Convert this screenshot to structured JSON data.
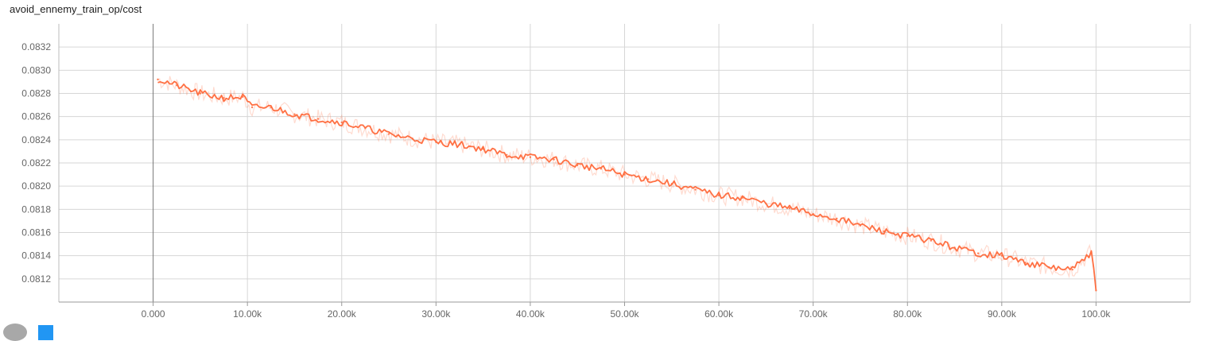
{
  "chart_title": "avoid_ennemy_train_op/cost",
  "chart_data": {
    "type": "line",
    "title": "avoid_ennemy_train_op/cost",
    "xlabel": "",
    "ylabel": "",
    "xlim": [
      -10000,
      110000
    ],
    "ylim": [
      0.081,
      0.0834
    ],
    "x_ticks": [
      0,
      10000,
      20000,
      30000,
      40000,
      50000,
      60000,
      70000,
      80000,
      90000,
      100000
    ],
    "x_tick_labels": [
      "0.000",
      "10.00k",
      "20.00k",
      "30.00k",
      "40.00k",
      "50.00k",
      "60.00k",
      "70.00k",
      "80.00k",
      "90.00k",
      "100.0k"
    ],
    "y_ticks": [
      0.0812,
      0.0814,
      0.0816,
      0.0818,
      0.082,
      0.0822,
      0.0824,
      0.0826,
      0.0828,
      0.083,
      0.0832
    ],
    "y_tick_labels": [
      "0.0812",
      "0.0814",
      "0.0816",
      "0.0818",
      "0.0820",
      "0.0822",
      "0.0824",
      "0.0826",
      "0.0828",
      "0.0830",
      "0.0832"
    ],
    "grid": true,
    "series": [
      {
        "color": "#ff7043",
        "x": [
          500,
          2500,
          5000,
          7500,
          9500,
          10500,
          12500,
          15000,
          17500,
          20000,
          22500,
          25000,
          27500,
          30000,
          32500,
          35000,
          37500,
          40000,
          42500,
          45000,
          47500,
          50000,
          52500,
          55000,
          57500,
          60000,
          62500,
          65000,
          67500,
          70000,
          72500,
          75000,
          77500,
          80000,
          82500,
          85000,
          87500,
          90000,
          92500,
          95000,
          97500,
          99500,
          100000
        ],
        "y": [
          0.08292,
          0.08287,
          0.0828,
          0.08276,
          0.08277,
          0.08268,
          0.08268,
          0.08262,
          0.08258,
          0.08255,
          0.0825,
          0.08245,
          0.08241,
          0.08238,
          0.08236,
          0.08232,
          0.08227,
          0.08225,
          0.08223,
          0.08218,
          0.08215,
          0.0821,
          0.08206,
          0.08202,
          0.08197,
          0.08192,
          0.0819,
          0.08185,
          0.08181,
          0.08176,
          0.08172,
          0.08166,
          0.08161,
          0.08157,
          0.08153,
          0.08147,
          0.08142,
          0.0814,
          0.08134,
          0.0813,
          0.08128,
          0.08143,
          0.0811
        ]
      }
    ]
  },
  "icons": {
    "footer": [
      "toggle-icon",
      "expand-icon"
    ]
  }
}
